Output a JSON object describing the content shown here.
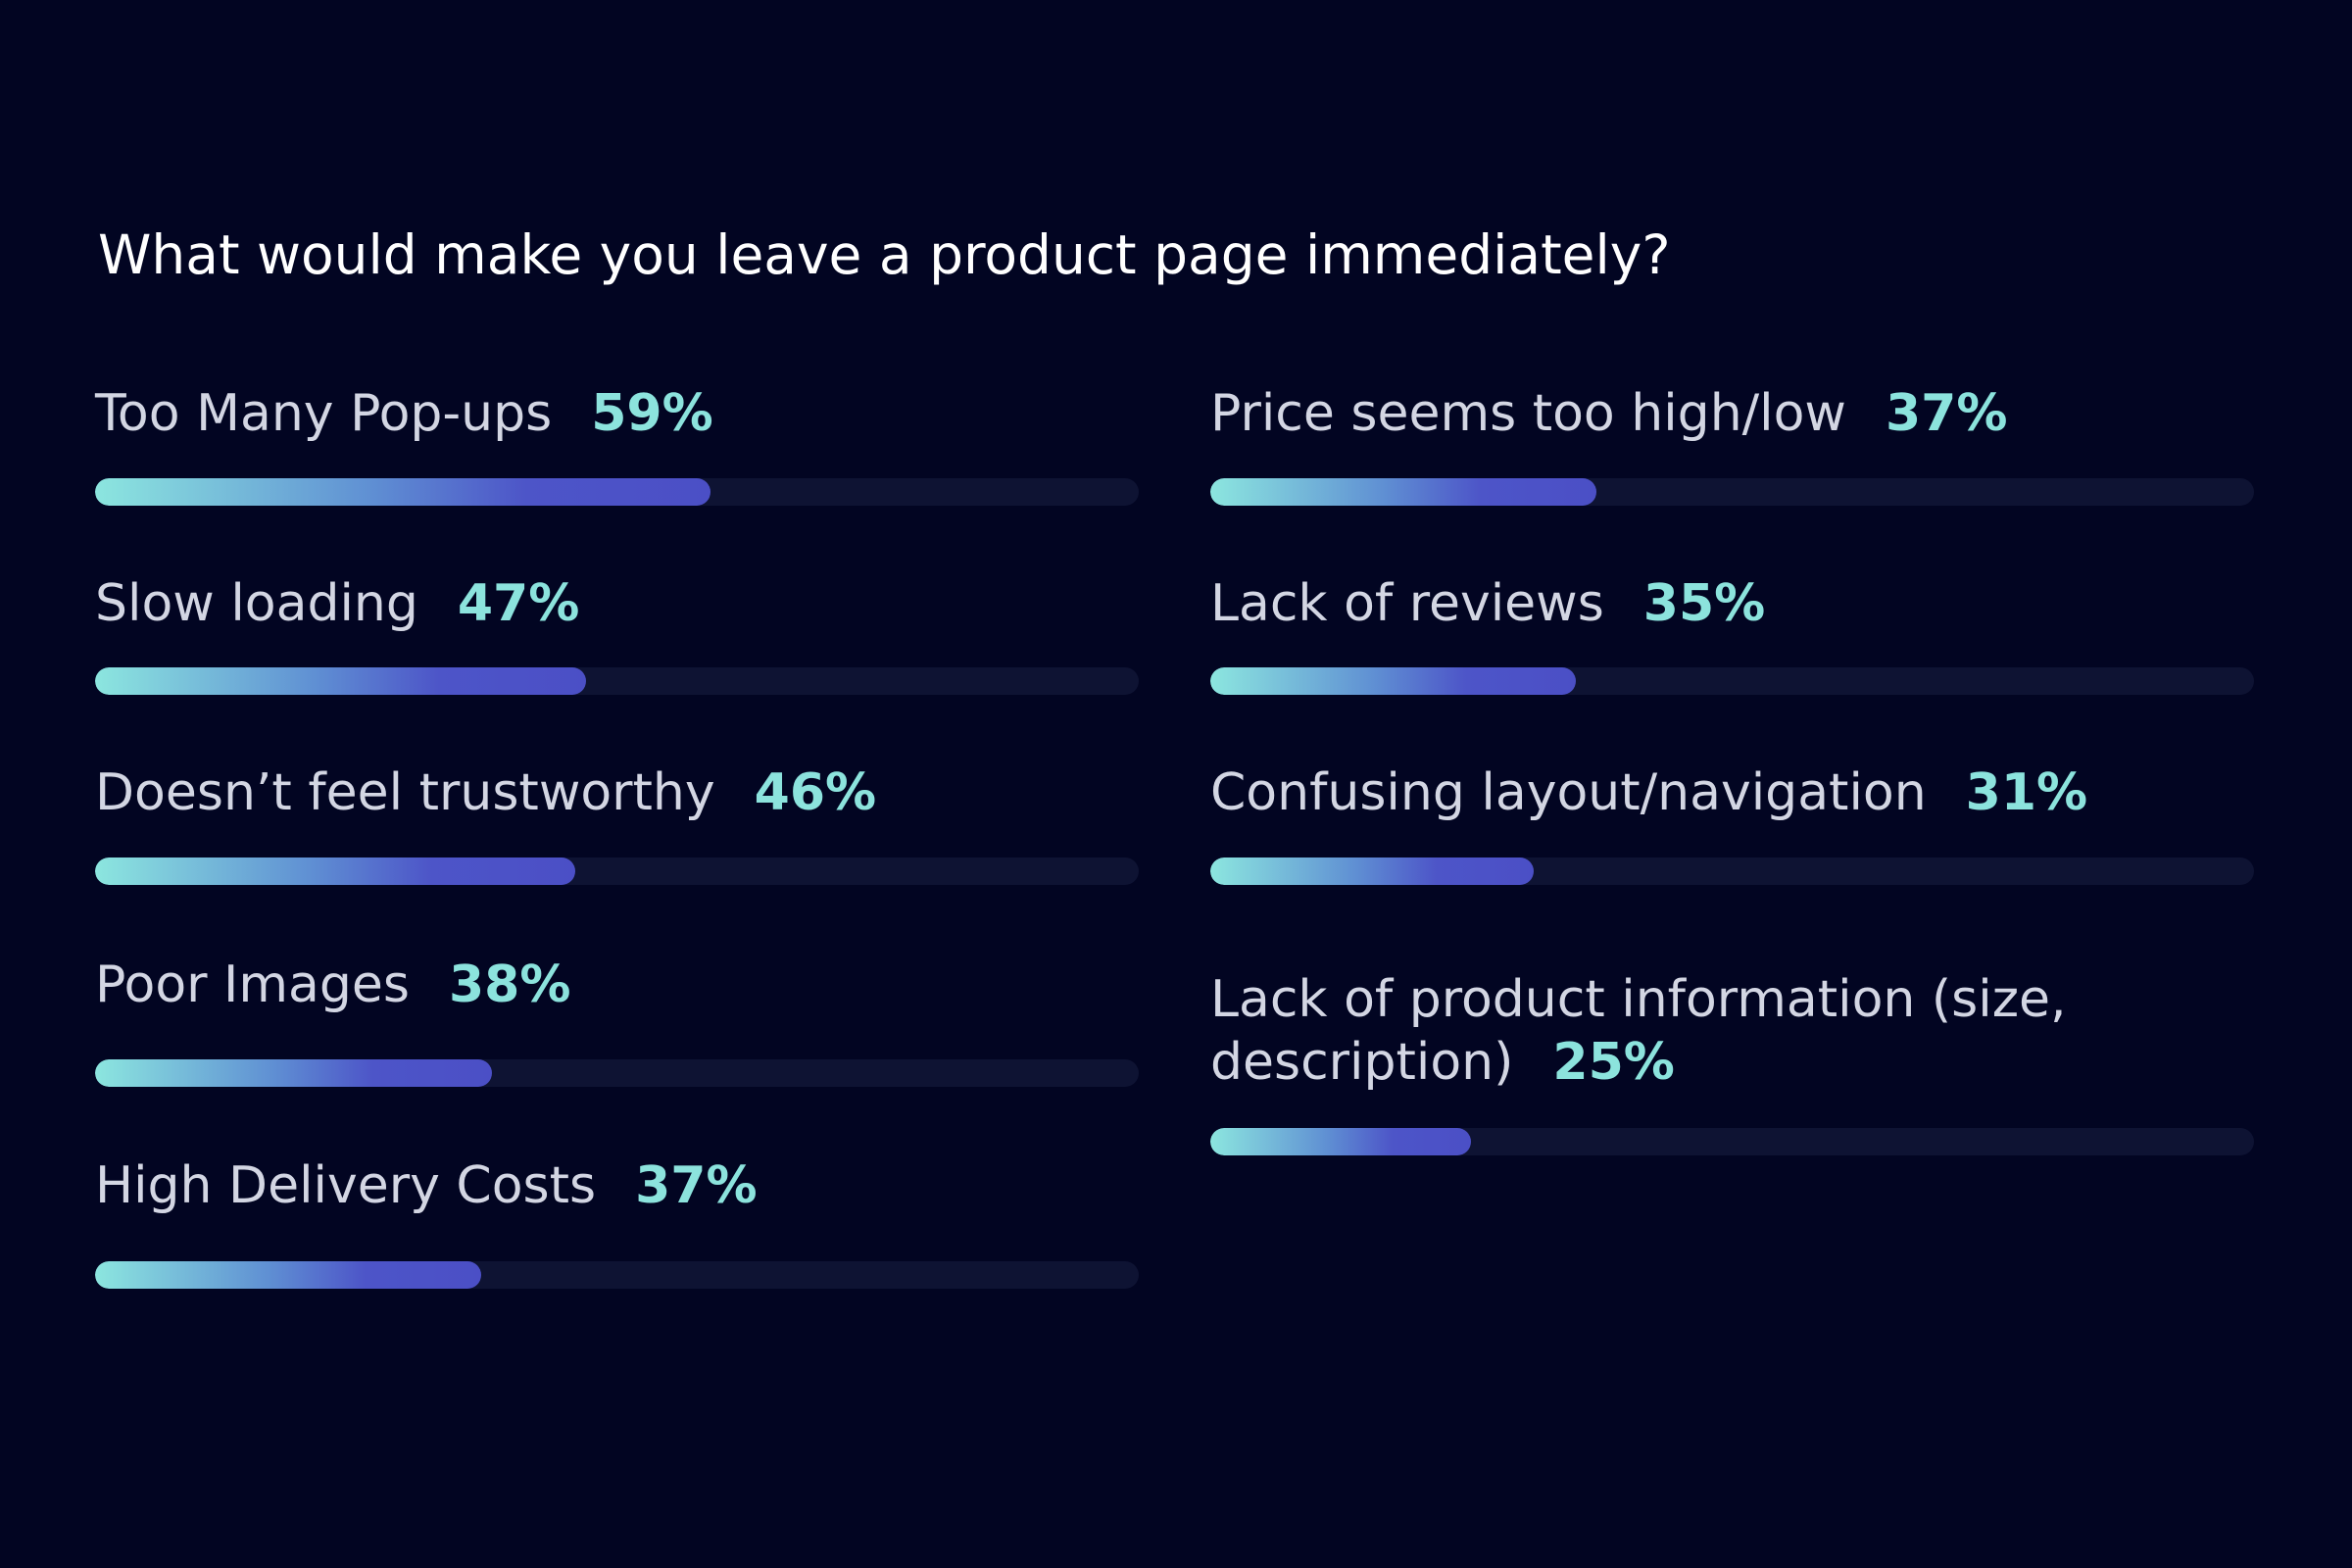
{
  "chart_data": {
    "type": "bar",
    "orientation": "horizontal",
    "title": "What would make you leave a product page immediately?",
    "unit": "%",
    "xlim": [
      0,
      100
    ],
    "categories": [
      "Too Many Pop-ups",
      "Slow loading",
      "Doesn’t feel trustworthy",
      "Poor Images",
      "High Delivery Costs",
      "Price seems too high/low",
      "Lack of reviews",
      "Confusing layout/navigation",
      "Lack of product information (size, description)"
    ],
    "values": [
      59,
      47,
      46,
      38,
      37,
      37,
      35,
      31,
      25
    ],
    "labels": [
      "59%",
      "47%",
      "46%",
      "38%",
      "37%",
      "37%",
      "35%",
      "31%",
      "25%"
    ],
    "colors": {
      "background": "#020522",
      "track": "#0e1333",
      "fill_start": "#8ce6df",
      "fill_end": "#4b4fc6",
      "value_text": "#8ce3dd"
    }
  }
}
